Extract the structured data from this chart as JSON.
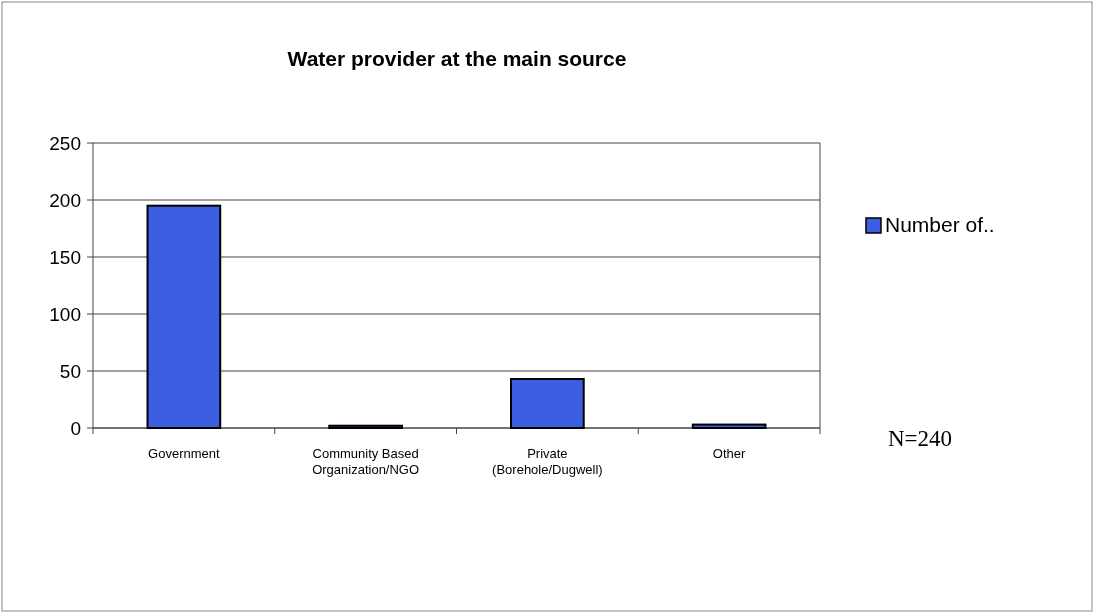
{
  "chart_data": {
    "type": "bar",
    "title": "Water provider at the main source",
    "categories": [
      "Government",
      "Community Based\nOrganization/NGO",
      "Private\n(Borehole/Dugwell)",
      "Other"
    ],
    "series": [
      {
        "name": "Number of..",
        "color": "#3b5fe0",
        "values": [
          195,
          2,
          43,
          3
        ]
      }
    ],
    "ylim": [
      0,
      250
    ],
    "yticks": [
      0,
      50,
      100,
      150,
      200,
      250
    ],
    "grid": "y",
    "legend": "right",
    "annotations": [
      "N=240"
    ]
  }
}
